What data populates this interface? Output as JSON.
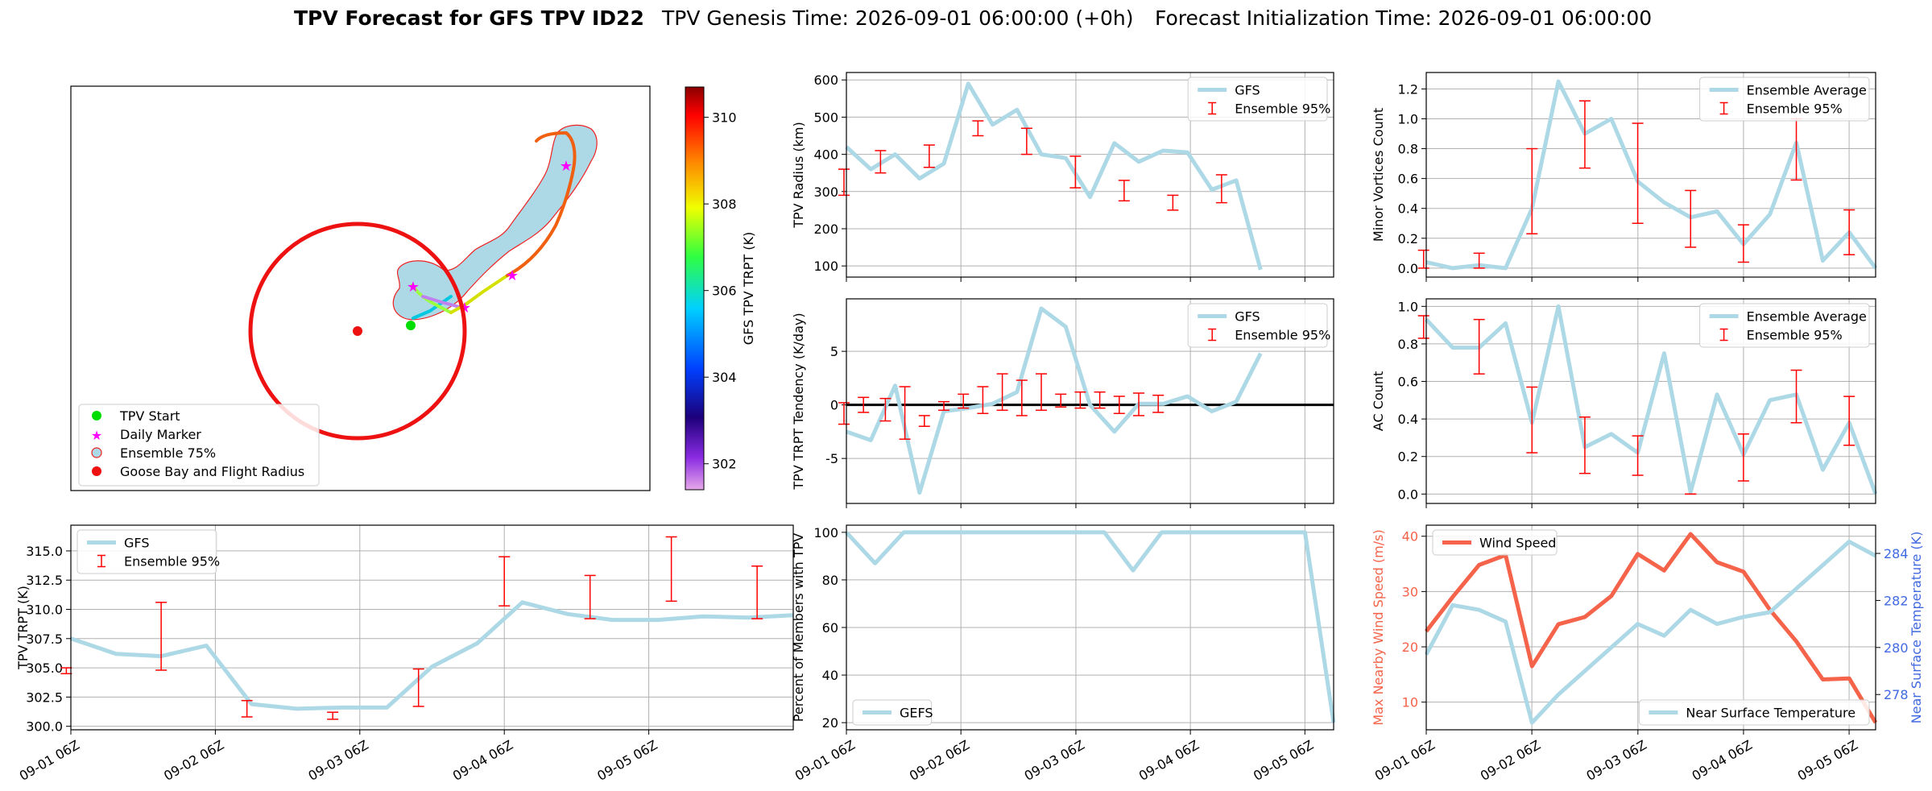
{
  "header": {
    "title": "TPV Forecast for GFS TPV ID22",
    "genesis": "TPV Genesis Time: 2026-09-01 06:00:00 (+0h)",
    "init": "Forecast Initialization Time: 2026-09-01 06:00:00"
  },
  "colors": {
    "gfs_line": "#add8e6",
    "error_bar": "#ff0000",
    "wind": "#f4634a",
    "temp_axis": "#4169e1",
    "radius_circle": "#ee1111",
    "zero_line": "#000000"
  },
  "map": {
    "legend": [
      "TPV Start",
      "Daily Marker",
      "Ensemble 75%",
      "Goose Bay and Flight Radius"
    ],
    "colorbar": {
      "label": "GFS TPV TRPT (K)",
      "ticks": [
        302,
        304,
        306,
        308,
        310
      ],
      "range": [
        301.4,
        310.7
      ]
    }
  },
  "chart_data": [
    {
      "id": "radius",
      "type": "line",
      "ylabel": "TPV Radius (km)",
      "ylim": [
        70,
        620
      ],
      "yticks": [
        100,
        200,
        300,
        400,
        500,
        600
      ],
      "xlim": [
        0,
        20
      ],
      "legend": [
        "GFS",
        "Ensemble 95%"
      ],
      "series": [
        {
          "name": "GFS",
          "x": [
            0,
            1,
            2,
            3,
            4,
            5,
            6,
            7,
            8,
            9,
            10,
            11,
            12,
            13,
            14,
            15,
            16,
            17,
            18,
            19,
            20
          ],
          "values": [
            420,
            360,
            400,
            335,
            375,
            590,
            480,
            520,
            400,
            390,
            285,
            430,
            380,
            410,
            405,
            305,
            330,
            90,
            null,
            null,
            null
          ]
        }
      ],
      "errorbars": [
        {
          "x": -0.1,
          "low": 290,
          "high": 360
        },
        {
          "x": 1.4,
          "low": 350,
          "high": 410
        },
        {
          "x": 3.4,
          "low": 365,
          "high": 425
        },
        {
          "x": 5.4,
          "low": 450,
          "high": 490
        },
        {
          "x": 7.4,
          "low": 400,
          "high": 470
        },
        {
          "x": 9.4,
          "low": 310,
          "high": 395
        },
        {
          "x": 11.4,
          "low": 275,
          "high": 330
        },
        {
          "x": 13.4,
          "low": 250,
          "high": 290
        },
        {
          "x": 15.4,
          "low": 270,
          "high": 345
        }
      ]
    },
    {
      "id": "minor",
      "type": "line",
      "ylabel": "Minor Vortices Count",
      "ylim": [
        -0.06,
        1.31
      ],
      "yticks": [
        0.0,
        0.2,
        0.4,
        0.6,
        0.8,
        1.0,
        1.2
      ],
      "yfmt": 1,
      "xlim": [
        0,
        17
      ],
      "legend": [
        "Ensemble Average",
        "Ensemble 95%"
      ],
      "series": [
        {
          "name": "Ensemble Average",
          "x": [
            0,
            1,
            2,
            3,
            4,
            5,
            6,
            7,
            8,
            9,
            10,
            11,
            12,
            13,
            14,
            15,
            16,
            17
          ],
          "values": [
            0.04,
            0.0,
            0.02,
            0.0,
            0.4,
            1.25,
            0.9,
            1.0,
            0.58,
            0.44,
            0.34,
            0.38,
            0.16,
            0.36,
            0.84,
            0.05,
            0.24,
            0.0
          ]
        }
      ],
      "errorbars": [
        {
          "x": -0.1,
          "low": 0.0,
          "high": 0.12
        },
        {
          "x": 2.0,
          "low": 0.0,
          "high": 0.1
        },
        {
          "x": 4.0,
          "low": 0.23,
          "high": 0.8
        },
        {
          "x": 6.0,
          "low": 0.67,
          "high": 1.12
        },
        {
          "x": 8.0,
          "low": 0.3,
          "high": 0.97
        },
        {
          "x": 10.0,
          "low": 0.14,
          "high": 0.52
        },
        {
          "x": 12.0,
          "low": 0.04,
          "high": 0.29
        },
        {
          "x": 14.0,
          "low": 0.59,
          "high": 1.0
        },
        {
          "x": 16.0,
          "low": 0.09,
          "high": 0.39
        }
      ]
    },
    {
      "id": "tendency",
      "type": "line",
      "ylabel": "TPV TRPT Tendency (K/day)",
      "ylim": [
        -9.2,
        9.9
      ],
      "yticks": [
        -5,
        0,
        5
      ],
      "zero_line": true,
      "xlim": [
        0,
        20
      ],
      "legend": [
        "GFS",
        "Ensemble 95%"
      ],
      "series": [
        {
          "name": "GFS",
          "x": [
            0,
            1,
            2,
            3,
            4,
            5,
            6,
            7,
            8,
            9,
            10,
            11,
            12,
            13,
            14,
            15,
            16,
            17,
            18,
            19,
            20
          ],
          "values": [
            -2.5,
            -3.3,
            1.8,
            -8.2,
            -0.6,
            -0.3,
            0.1,
            1.2,
            9.0,
            7.3,
            0.0,
            -2.5,
            0.1,
            0.1,
            0.8,
            -0.6,
            0.3,
            4.8,
            null,
            null,
            null
          ]
        }
      ],
      "errorbars": [
        {
          "x": -0.1,
          "low": -1.8,
          "high": 0.2
        },
        {
          "x": 0.7,
          "low": -0.7,
          "high": 0.7
        },
        {
          "x": 1.6,
          "low": -1.5,
          "high": 0.6
        },
        {
          "x": 2.4,
          "low": -3.2,
          "high": 1.7
        },
        {
          "x": 3.2,
          "low": -2.0,
          "high": -1.0
        },
        {
          "x": 4.0,
          "low": -0.5,
          "high": 0.3
        },
        {
          "x": 4.8,
          "low": -0.3,
          "high": 1.0
        },
        {
          "x": 5.6,
          "low": -0.8,
          "high": 1.7
        },
        {
          "x": 6.4,
          "low": -0.5,
          "high": 2.9
        },
        {
          "x": 7.2,
          "low": -1.0,
          "high": 2.3
        },
        {
          "x": 8.0,
          "low": -0.5,
          "high": 2.9
        },
        {
          "x": 8.8,
          "low": -0.2,
          "high": 1.0
        },
        {
          "x": 9.6,
          "low": -0.3,
          "high": 1.2
        },
        {
          "x": 10.4,
          "low": -0.3,
          "high": 1.2
        },
        {
          "x": 11.2,
          "low": -0.8,
          "high": 0.8
        },
        {
          "x": 12.0,
          "low": -1.0,
          "high": 1.1
        },
        {
          "x": 12.8,
          "low": -0.7,
          "high": 0.9
        }
      ]
    },
    {
      "id": "ac",
      "type": "line",
      "ylabel": "AC Count",
      "ylim": [
        -0.05,
        1.04
      ],
      "yticks": [
        0.0,
        0.2,
        0.4,
        0.6,
        0.8,
        1.0
      ],
      "yfmt": 1,
      "xlim": [
        0,
        17
      ],
      "legend": [
        "Ensemble Average",
        "Ensemble 95%"
      ],
      "series": [
        {
          "name": "Ensemble Average",
          "x": [
            0,
            1,
            2,
            3,
            4,
            5,
            6,
            7,
            8,
            9,
            10,
            11,
            12,
            13,
            14,
            15,
            16,
            17
          ],
          "values": [
            0.93,
            0.78,
            0.78,
            0.91,
            0.38,
            1.0,
            0.25,
            0.32,
            0.22,
            0.75,
            0.01,
            0.53,
            0.21,
            0.5,
            0.53,
            0.13,
            0.38,
            0.0
          ]
        }
      ],
      "errorbars": [
        {
          "x": -0.1,
          "low": 0.83,
          "high": 0.95
        },
        {
          "x": 2.0,
          "low": 0.64,
          "high": 0.93
        },
        {
          "x": 4.0,
          "low": 0.22,
          "high": 0.57
        },
        {
          "x": 6.0,
          "low": 0.11,
          "high": 0.41
        },
        {
          "x": 8.0,
          "low": 0.1,
          "high": 0.31
        },
        {
          "x": 10.0,
          "low": 0.0,
          "high": 0.0
        },
        {
          "x": 12.0,
          "low": 0.07,
          "high": 0.32
        },
        {
          "x": 14.0,
          "low": 0.38,
          "high": 0.66
        },
        {
          "x": 16.0,
          "low": 0.26,
          "high": 0.52
        }
      ]
    },
    {
      "id": "trpt",
      "type": "line",
      "ylabel": "TPV TRPT (K)",
      "ylim": [
        299.7,
        317.2
      ],
      "yticks": [
        300.0,
        302.5,
        305.0,
        307.5,
        310.0,
        312.5,
        315.0
      ],
      "yfmt": 1,
      "xlim": [
        0,
        16
      ],
      "legend": [
        "GFS",
        "Ensemble 95%"
      ],
      "series": [
        {
          "name": "GFS",
          "x": [
            0,
            1,
            2,
            3,
            4,
            5,
            6,
            7,
            8,
            9,
            10,
            11,
            12,
            13,
            14,
            15,
            16
          ],
          "values": [
            307.5,
            306.2,
            306.0,
            306.9,
            301.9,
            301.5,
            301.6,
            301.6,
            305.1,
            307.1,
            310.6,
            309.6,
            309.1,
            309.1,
            309.4,
            309.3,
            309.5
          ]
        }
      ],
      "errorbars": [
        {
          "x": -0.1,
          "low": 304.5,
          "high": 305.0
        },
        {
          "x": 2.0,
          "low": 304.8,
          "high": 310.6
        },
        {
          "x": 3.9,
          "low": 300.8,
          "high": 302.2
        },
        {
          "x": 5.8,
          "low": 300.6,
          "high": 301.2
        },
        {
          "x": 7.7,
          "low": 301.7,
          "high": 304.9
        },
        {
          "x": 9.6,
          "low": 310.3,
          "high": 314.5
        },
        {
          "x": 11.5,
          "low": 309.2,
          "high": 312.9
        },
        {
          "x": 13.3,
          "low": 310.7,
          "high": 316.2
        },
        {
          "x": 15.2,
          "low": 309.2,
          "high": 313.7
        }
      ]
    },
    {
      "id": "percent",
      "type": "line",
      "ylabel": "Percent of Members with TPV",
      "ylim": [
        17,
        103
      ],
      "yticks": [
        20,
        40,
        60,
        80,
        100
      ],
      "xlim": [
        0,
        17
      ],
      "legend": [
        "GEFS"
      ],
      "series": [
        {
          "name": "GEFS",
          "x": [
            0,
            1,
            2,
            3,
            4,
            5,
            6,
            7,
            8,
            9,
            10,
            11,
            12,
            13,
            14,
            15,
            16,
            17
          ],
          "values": [
            100,
            87,
            100,
            100,
            100,
            100,
            100,
            100,
            100,
            100,
            84,
            100,
            100,
            100,
            100,
            100,
            100,
            20
          ]
        }
      ],
      "errorbars": []
    },
    {
      "id": "wind",
      "type": "line",
      "ylabel": "Max Nearby Wind Speed (m/s)",
      "ylabel_right": "Near Surface Temperature (K)",
      "ylim": [
        5,
        42
      ],
      "yticks": [
        10,
        20,
        30,
        40
      ],
      "ylim_right": [
        276.5,
        285.2
      ],
      "yticks_right": [
        278,
        280,
        282,
        284
      ],
      "xlim": [
        0,
        17
      ],
      "legend": [
        "Wind Speed"
      ],
      "legend_right": [
        "Near Surface Temperature"
      ],
      "series": [
        {
          "name": "Wind Speed",
          "x": [
            0,
            1,
            2,
            3,
            4,
            5,
            6,
            7,
            8,
            9,
            10,
            11,
            12,
            13,
            14,
            15,
            16,
            17
          ],
          "values": [
            22.8,
            29.0,
            34.8,
            36.6,
            16.5,
            24.1,
            25.4,
            29.2,
            36.8,
            33.8,
            40.4,
            35.3,
            33.6,
            26.7,
            21.0,
            14.1,
            14.3,
            6.3
          ]
        },
        {
          "name": "Near Surface Temperature",
          "axis": "right",
          "x": [
            0,
            1,
            2,
            3,
            4,
            5,
            6,
            7,
            8,
            9,
            10,
            11,
            12,
            13,
            14,
            15,
            16,
            17
          ],
          "values": [
            279.7,
            281.8,
            281.6,
            281.1,
            276.8,
            278.0,
            279.0,
            280.0,
            281.0,
            280.5,
            281.6,
            281.0,
            281.3,
            281.5,
            282.5,
            283.5,
            284.5,
            283.9
          ]
        }
      ],
      "errorbars": []
    }
  ],
  "xaxis": {
    "tick_labels": [
      "09-01 06Z",
      "09-02 06Z",
      "09-03 06Z",
      "09-04 06Z",
      "09-05 06Z"
    ],
    "tick_fracs_short": [
      0.0,
      0.235,
      0.471,
      0.706,
      0.941
    ],
    "tick_fracs_long": [
      0.0,
      0.2,
      0.4,
      0.6,
      0.8
    ]
  }
}
